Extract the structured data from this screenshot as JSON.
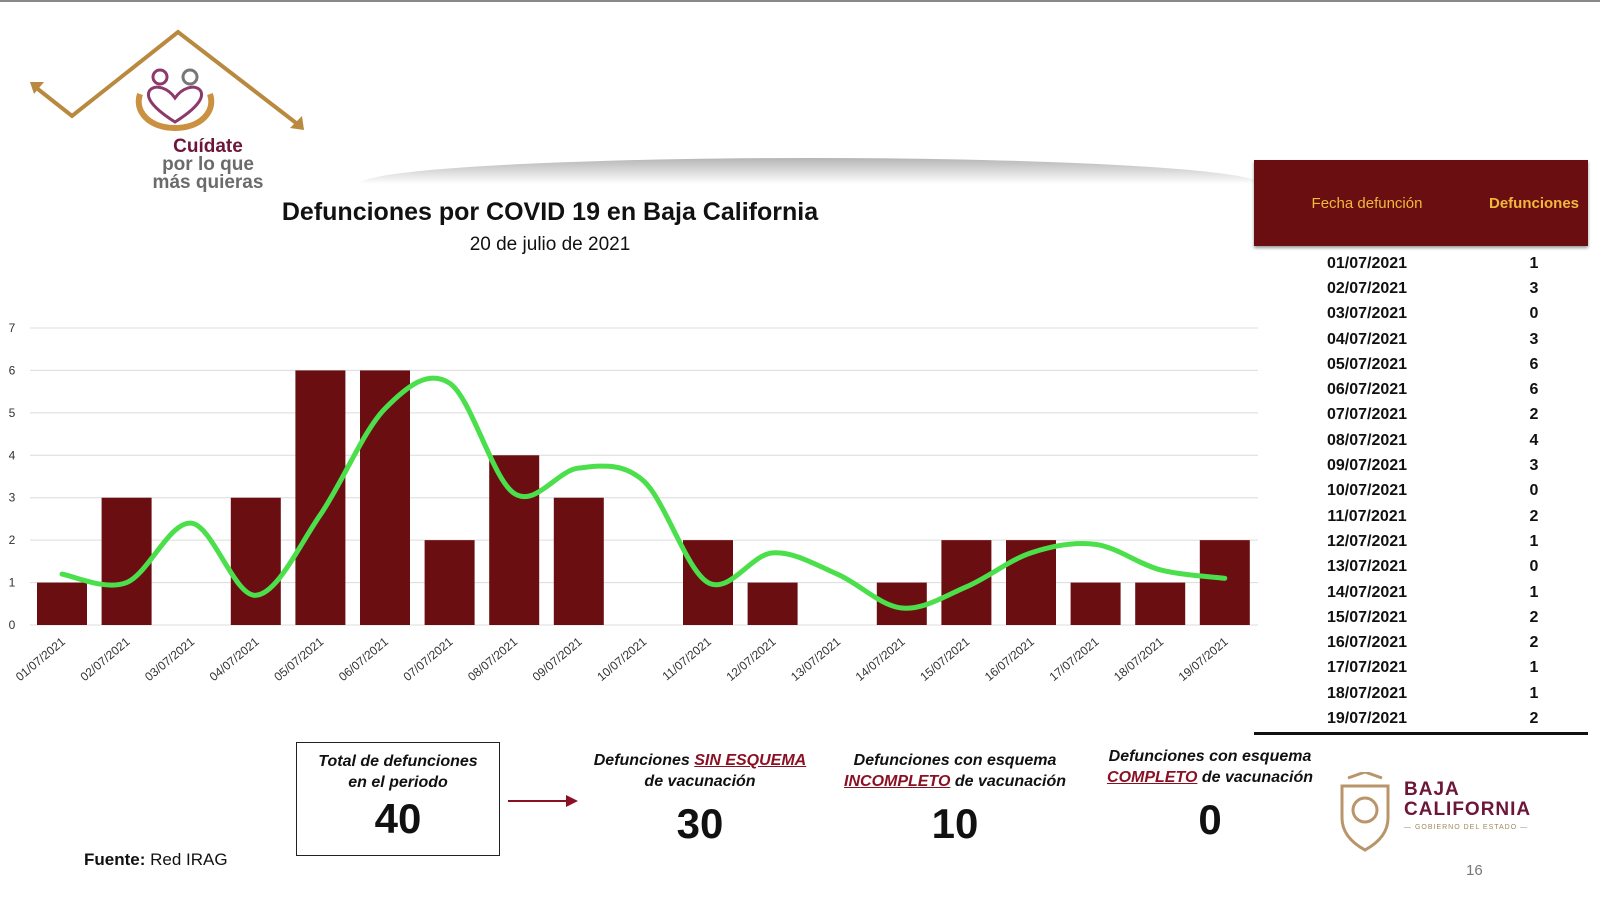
{
  "brand": {
    "logo_line1": "Cuídate",
    "logo_line2": "por lo que",
    "logo_line3": "más quieras",
    "gov_name_line1": "BAJA",
    "gov_name_line2": "CALIFORNIA",
    "gov_subtitle": "— GOBIERNO DEL ESTADO —"
  },
  "colors": {
    "bar": "#6b0e12",
    "trend": "#4be04b",
    "table_header_bg": "#6b0e12",
    "table_header_text": "#f0b93d",
    "accent": "#8a1023"
  },
  "chart_data": {
    "type": "bar",
    "title": "Defunciones por COVID 19 en Baja California",
    "subtitle": "20 de julio de 2021",
    "categories": [
      "01/07/2021",
      "02/07/2021",
      "03/07/2021",
      "04/07/2021",
      "05/07/2021",
      "06/07/2021",
      "07/07/2021",
      "08/07/2021",
      "09/07/2021",
      "10/07/2021",
      "11/07/2021",
      "12/07/2021",
      "13/07/2021",
      "14/07/2021",
      "15/07/2021",
      "16/07/2021",
      "17/07/2021",
      "18/07/2021",
      "19/07/2021"
    ],
    "values": [
      1,
      3,
      0,
      3,
      6,
      6,
      2,
      4,
      3,
      0,
      2,
      1,
      0,
      1,
      2,
      2,
      1,
      1,
      2
    ],
    "trend_values": [
      1.2,
      1.0,
      2.4,
      0.7,
      2.6,
      5.1,
      5.7,
      3.1,
      3.7,
      3.4,
      1.0,
      1.7,
      1.2,
      0.4,
      0.9,
      1.7,
      1.9,
      1.3,
      1.1
    ],
    "ylim": [
      0,
      7
    ],
    "yticks": [
      "0",
      "1",
      "2",
      "3",
      "4",
      "5",
      "6",
      "7"
    ],
    "grid": true,
    "xlabel": "",
    "ylabel": ""
  },
  "table": {
    "header_date": "Fecha defunción",
    "header_deaths": "Defunciones",
    "rows": [
      {
        "date": "01/07/2021",
        "value": "1"
      },
      {
        "date": "02/07/2021",
        "value": "3"
      },
      {
        "date": "03/07/2021",
        "value": "0"
      },
      {
        "date": "04/07/2021",
        "value": "3"
      },
      {
        "date": "05/07/2021",
        "value": "6"
      },
      {
        "date": "06/07/2021",
        "value": "6"
      },
      {
        "date": "07/07/2021",
        "value": "2"
      },
      {
        "date": "08/07/2021",
        "value": "4"
      },
      {
        "date": "09/07/2021",
        "value": "3"
      },
      {
        "date": "10/07/2021",
        "value": "0"
      },
      {
        "date": "11/07/2021",
        "value": "2"
      },
      {
        "date": "12/07/2021",
        "value": "1"
      },
      {
        "date": "13/07/2021",
        "value": "0"
      },
      {
        "date": "14/07/2021",
        "value": "1"
      },
      {
        "date": "15/07/2021",
        "value": "2"
      },
      {
        "date": "16/07/2021",
        "value": "2"
      },
      {
        "date": "17/07/2021",
        "value": "1"
      },
      {
        "date": "18/07/2021",
        "value": "1"
      },
      {
        "date": "19/07/2021",
        "value": "2"
      }
    ]
  },
  "summary": {
    "total_label_1": "Total de defunciones",
    "total_label_2": "en el periodo",
    "total_value": "40",
    "sin_label_a": "Defunciones ",
    "sin_label_u": "SIN ESQUEMA",
    "sin_label_b": "de vacunación",
    "sin_value": "30",
    "inc_label_a": "Defunciones con esquema",
    "inc_label_u": "INCOMPLETO",
    "inc_label_b": " de vacunación",
    "inc_value": "10",
    "com_label_a": "Defunciones con esquema",
    "com_label_u": "COMPLETO",
    "com_label_b": " de vacunación",
    "com_value": "0"
  },
  "footer": {
    "source_label": "Fuente:",
    "source_value": " Red IRAG",
    "page_number": "16"
  }
}
